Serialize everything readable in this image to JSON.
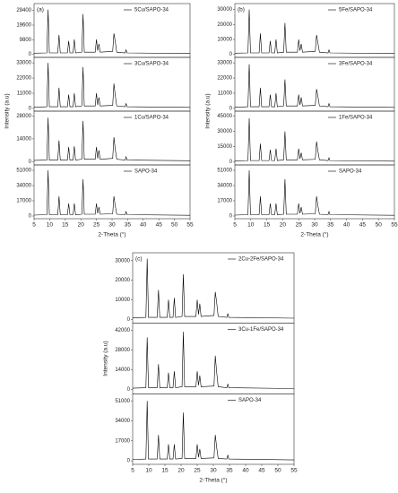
{
  "chart_data": [
    {
      "type": "line",
      "label": "(a)",
      "xlabel": "2-Theta (°)",
      "ylabel": "Intensity (a.u)",
      "color": "#000000",
      "xlim": [
        5,
        55
      ],
      "xticks": [
        5,
        10,
        15,
        20,
        25,
        30,
        35,
        40,
        45,
        50,
        55
      ],
      "x": [
        5,
        9.1,
        9.5,
        9.9,
        12.6,
        13.0,
        13.4,
        15.7,
        16.1,
        16.5,
        17.5,
        17.9,
        18.3,
        20.3,
        20.7,
        21.1,
        24.6,
        25.0,
        25.4,
        25.8,
        26.2,
        30.2,
        30.6,
        31.0,
        31.5,
        34.2,
        34.5,
        34.8,
        55
      ],
      "series": [
        {
          "name": "5Cu/SAPO-34",
          "ylim": [
            -2000,
            34000
          ],
          "yticks": [
            0,
            9800,
            19600,
            29400
          ],
          "values": [
            800,
            1000,
            30000,
            1000,
            1000,
            13000,
            1000,
            1000,
            9000,
            1000,
            1000,
            10000,
            1000,
            1500,
            27000,
            1500,
            1500,
            10000,
            2500,
            7000,
            1500,
            2000,
            14000,
            9000,
            1500,
            1000,
            3000,
            1000,
            600
          ]
        },
        {
          "name": "3Cu/SAPO-34",
          "ylim": [
            -2000,
            37000
          ],
          "yticks": [
            0,
            11000,
            22000,
            33000
          ],
          "values": [
            800,
            1200,
            33000,
            1200,
            1200,
            15000,
            1200,
            1200,
            10000,
            1200,
            1200,
            11000,
            1200,
            1800,
            30000,
            1800,
            1800,
            11000,
            2500,
            8000,
            1800,
            2200,
            18000,
            10000,
            1800,
            1200,
            3500,
            1200,
            700
          ]
        },
        {
          "name": "1Cu/SAPO-34",
          "ylim": [
            -2000,
            31000
          ],
          "yticks": [
            0,
            14000,
            28000
          ],
          "values": [
            800,
            1000,
            27000,
            1000,
            1000,
            13000,
            1000,
            1000,
            9000,
            1000,
            1000,
            9500,
            1000,
            1500,
            25000,
            1500,
            1500,
            9000,
            2000,
            7000,
            1500,
            2000,
            15000,
            8000,
            1500,
            1000,
            3000,
            1000,
            600
          ]
        },
        {
          "name": "SAPO-34",
          "ylim": [
            -3000,
            57000
          ],
          "yticks": [
            0,
            17000,
            34000,
            51000
          ],
          "values": [
            1000,
            1500,
            51000,
            1500,
            1500,
            22000,
            1500,
            1500,
            14000,
            1500,
            1500,
            14000,
            1500,
            2000,
            41000,
            2000,
            2000,
            14000,
            3000,
            10000,
            2000,
            2500,
            22000,
            12000,
            2000,
            1500,
            5000,
            1500,
            800
          ]
        }
      ]
    },
    {
      "type": "line",
      "label": "(b)",
      "xlabel": "2-Theta (°)",
      "ylabel": "Intensity (a.u)",
      "color": "#000000",
      "xlim": [
        5,
        55
      ],
      "xticks": [
        5,
        10,
        15,
        20,
        25,
        30,
        35,
        40,
        45,
        50,
        55
      ],
      "x": [
        5,
        9.1,
        9.5,
        9.9,
        12.6,
        13.0,
        13.4,
        15.7,
        16.1,
        16.5,
        17.5,
        17.9,
        18.3,
        20.3,
        20.7,
        21.1,
        24.6,
        25.0,
        25.4,
        25.8,
        26.2,
        30.2,
        30.6,
        31.0,
        31.5,
        34.2,
        34.5,
        34.8,
        55
      ],
      "series": [
        {
          "name": "5Fe/SAPO-34",
          "ylim": [
            -2000,
            34000
          ],
          "yticks": [
            0,
            10000,
            20000,
            30000
          ],
          "values": [
            800,
            1000,
            30000,
            1000,
            1000,
            14000,
            1000,
            1000,
            9000,
            1000,
            1000,
            10000,
            1000,
            1500,
            21000,
            1500,
            1500,
            10000,
            2500,
            7000,
            1500,
            2000,
            13000,
            8000,
            1500,
            1000,
            3000,
            1000,
            600
          ]
        },
        {
          "name": "3Fe/SAPO-34",
          "ylim": [
            -2000,
            37000
          ],
          "yticks": [
            0,
            11000,
            22000,
            33000
          ],
          "values": [
            800,
            1200,
            32000,
            1200,
            1200,
            15000,
            1200,
            1200,
            10000,
            1200,
            1200,
            11000,
            1200,
            1800,
            21000,
            1800,
            1800,
            10000,
            2500,
            8000,
            1800,
            2200,
            14000,
            9000,
            1800,
            1200,
            3500,
            1200,
            700
          ]
        },
        {
          "name": "1Fe/SAPO-34",
          "ylim": [
            -3000,
            50000
          ],
          "yticks": [
            0,
            15000,
            30000,
            45000
          ],
          "values": [
            1000,
            1300,
            43000,
            1300,
            1300,
            18000,
            1300,
            1300,
            12000,
            1300,
            1300,
            13000,
            1300,
            2000,
            30000,
            2000,
            2000,
            13000,
            3000,
            9000,
            2000,
            2500,
            20000,
            11000,
            2000,
            1300,
            4000,
            1300,
            700
          ]
        },
        {
          "name": "SAPO-34",
          "ylim": [
            -3000,
            57000
          ],
          "yticks": [
            0,
            17000,
            34000,
            51000
          ],
          "values": [
            1000,
            1500,
            51000,
            1500,
            1500,
            22000,
            1500,
            1500,
            14000,
            1500,
            1500,
            14000,
            1500,
            2000,
            41000,
            2000,
            2000,
            14000,
            3000,
            10000,
            2000,
            2500,
            22000,
            12000,
            2000,
            1500,
            5000,
            1500,
            800
          ]
        }
      ]
    },
    {
      "type": "line",
      "label": "(c)",
      "xlabel": "2-Theta (°)",
      "ylabel": "Intensity (a.u)",
      "color": "#000000",
      "xlim": [
        5,
        55
      ],
      "xticks": [
        5,
        10,
        15,
        20,
        25,
        30,
        35,
        40,
        45,
        50,
        55
      ],
      "x": [
        5,
        9.1,
        9.5,
        9.9,
        12.6,
        13.0,
        13.4,
        15.7,
        16.1,
        16.5,
        17.5,
        17.9,
        18.3,
        20.3,
        20.7,
        21.1,
        24.6,
        25.0,
        25.4,
        25.8,
        26.2,
        30.2,
        30.6,
        31.0,
        31.5,
        34.2,
        34.5,
        34.8,
        55
      ],
      "series": [
        {
          "name": "2Cu-2Fe/SAPO-34",
          "ylim": [
            -2000,
            34000
          ],
          "yticks": [
            0,
            10000,
            20000,
            30000
          ],
          "values": [
            800,
            1000,
            31000,
            1000,
            1000,
            15000,
            1000,
            1000,
            10000,
            1000,
            1000,
            11000,
            1000,
            1500,
            23000,
            1500,
            1500,
            10000,
            2500,
            8000,
            1500,
            2000,
            14000,
            9000,
            1500,
            1000,
            3000,
            1000,
            600
          ]
        },
        {
          "name": "3Cu-1Fe/SAPO-34",
          "ylim": [
            -3000,
            47000
          ],
          "yticks": [
            0,
            14000,
            28000,
            42000
          ],
          "values": [
            1000,
            1300,
            37000,
            1300,
            1300,
            18000,
            1300,
            1300,
            12000,
            1300,
            1300,
            13000,
            1300,
            2000,
            41000,
            2000,
            2000,
            13000,
            3000,
            10000,
            2000,
            2500,
            24000,
            13000,
            2000,
            1300,
            4000,
            1300,
            700
          ]
        },
        {
          "name": "SAPO-34",
          "ylim": [
            -3000,
            57000
          ],
          "yticks": [
            0,
            17000,
            34000,
            51000
          ],
          "values": [
            1000,
            1500,
            51000,
            1500,
            1500,
            22000,
            1500,
            1500,
            14000,
            1500,
            1500,
            14000,
            1500,
            2000,
            41000,
            2000,
            2000,
            14000,
            3000,
            10000,
            2000,
            2500,
            22000,
            12000,
            2000,
            1500,
            5000,
            1500,
            800
          ]
        }
      ]
    }
  ]
}
